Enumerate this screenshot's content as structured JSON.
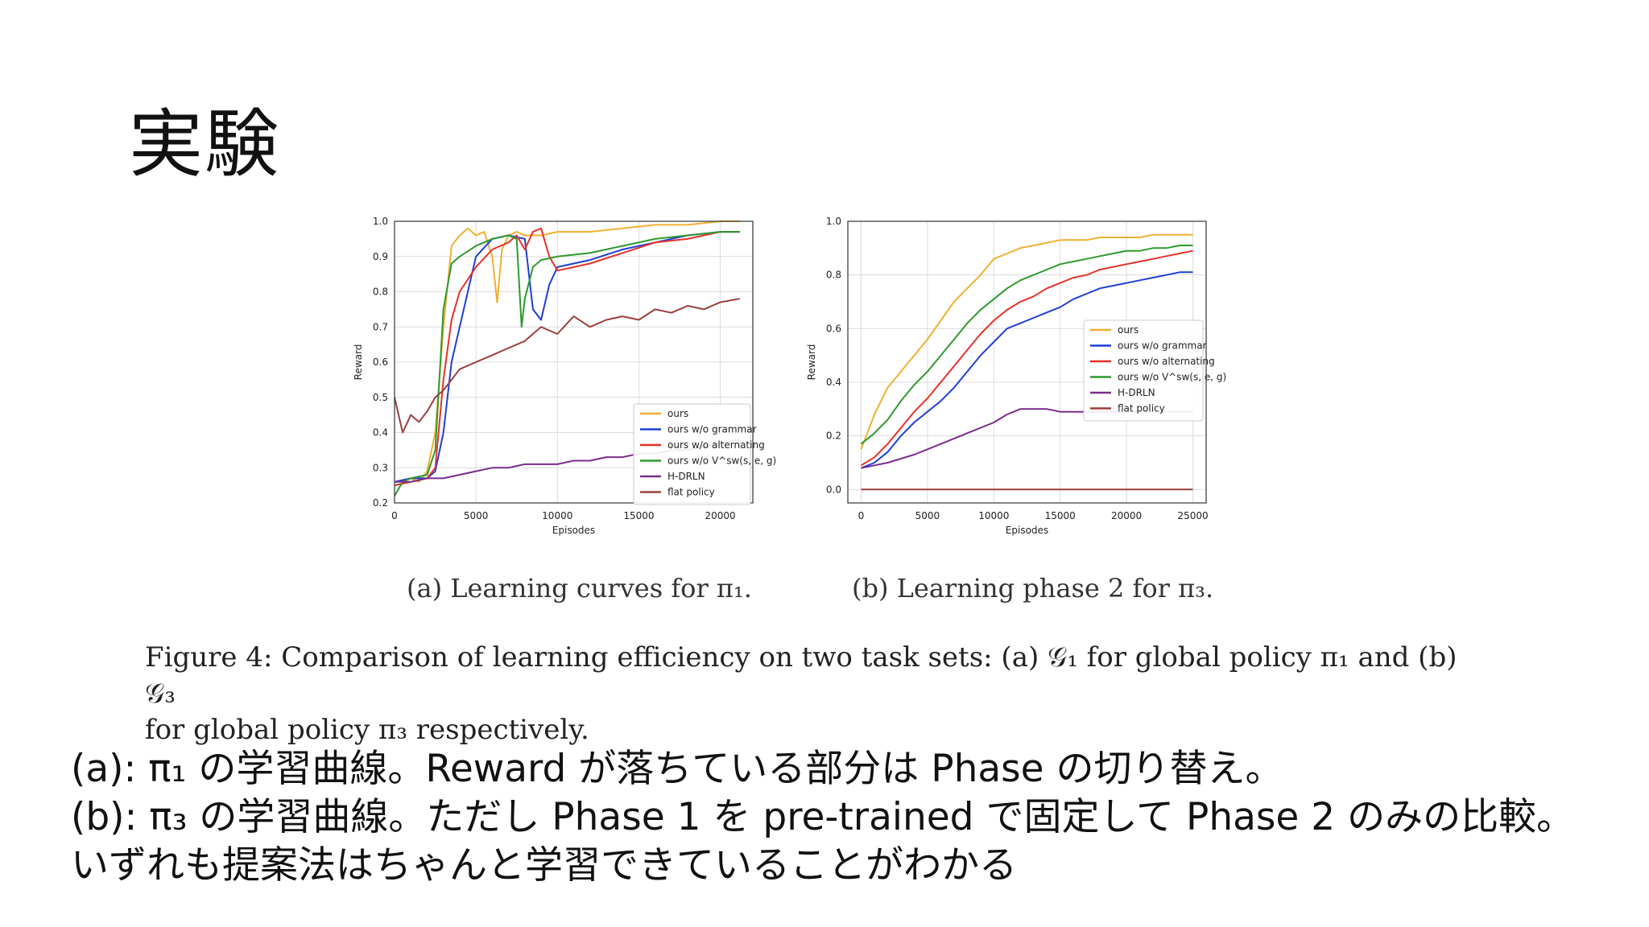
{
  "slide": {
    "title": "実験"
  },
  "subcaptions": {
    "a": "(a) Learning curves for π₁.",
    "b": "(b) Learning phase 2 for π₃."
  },
  "figure_caption": {
    "line1": "Figure 4: Comparison of learning efficiency on two task sets: (a) 𝒢₁ for global policy π₁ and (b) 𝒢₃",
    "line2": "for global policy π₃ respectively."
  },
  "notes": {
    "line1": "(a):  π₁ の学習曲線。Reward が落ちている部分は Phase の切り替え。",
    "line2": "(b):  π₃ の学習曲線。ただし Phase 1 を pre-trained で固定して Phase 2 のみの比較。",
    "line3": "いずれも提案法はちゃんと学習できていることがわかる"
  },
  "colors": {
    "ours": "#f0b030",
    "ours_wo_grammar": "#1f3fd8",
    "ours_wo_alternating": "#e8302a",
    "ours_wo_vsw": "#2e9a2e",
    "h_drln": "#7b2d8b",
    "flat_policy": "#9c3f3f"
  },
  "chart_data": [
    {
      "type": "line",
      "xlabel": "Episodes",
      "ylabel": "Reward",
      "xlim": [
        0,
        22000
      ],
      "ylim": [
        0.2,
        1.0
      ],
      "xticks": [
        0,
        5000,
        10000,
        15000,
        20000
      ],
      "yticks": [
        0.2,
        0.3,
        0.4,
        0.5,
        0.6,
        0.7,
        0.8,
        0.9,
        1.0
      ],
      "grid": true,
      "legend_position": "lower-right",
      "series": [
        {
          "name": "ours",
          "color": "#f0b030",
          "x": [
            0,
            1000,
            1500,
            2000,
            2500,
            3000,
            3500,
            4000,
            4500,
            5000,
            5500,
            6000,
            6300,
            6600,
            7000,
            7500,
            8000,
            9000,
            10000,
            12000,
            14000,
            16000,
            18000,
            20000,
            21200
          ],
          "y": [
            0.26,
            0.27,
            0.26,
            0.29,
            0.4,
            0.7,
            0.93,
            0.96,
            0.98,
            0.96,
            0.97,
            0.9,
            0.77,
            0.92,
            0.96,
            0.97,
            0.96,
            0.96,
            0.97,
            0.97,
            0.98,
            0.99,
            0.99,
            1.0,
            1.0
          ]
        },
        {
          "name": "ours w/o grammar",
          "color": "#1f3fd8",
          "x": [
            0,
            1000,
            2000,
            2500,
            3000,
            3500,
            4000,
            5000,
            6000,
            7000,
            8000,
            8500,
            9000,
            9500,
            10000,
            12000,
            14000,
            16000,
            18000,
            20000,
            21200
          ],
          "y": [
            0.26,
            0.27,
            0.27,
            0.29,
            0.4,
            0.6,
            0.7,
            0.9,
            0.95,
            0.96,
            0.95,
            0.75,
            0.72,
            0.82,
            0.87,
            0.89,
            0.92,
            0.94,
            0.96,
            0.97,
            0.97
          ]
        },
        {
          "name": "ours w/o alternating",
          "color": "#e8302a",
          "x": [
            0,
            1000,
            2000,
            2500,
            3000,
            3500,
            4000,
            5000,
            6000,
            7000,
            7500,
            8000,
            8500,
            9000,
            9500,
            10000,
            12000,
            14000,
            16000,
            18000,
            20000,
            21200
          ],
          "y": [
            0.25,
            0.26,
            0.27,
            0.3,
            0.55,
            0.72,
            0.8,
            0.87,
            0.92,
            0.94,
            0.96,
            0.92,
            0.97,
            0.98,
            0.9,
            0.86,
            0.88,
            0.91,
            0.94,
            0.95,
            0.97,
            0.97
          ]
        },
        {
          "name": "ours w/o V^sw(s, e, g)",
          "color": "#2e9a2e",
          "x": [
            0,
            500,
            1000,
            2000,
            2500,
            3000,
            3500,
            4000,
            5000,
            6000,
            7000,
            7500,
            7800,
            8000,
            8500,
            9000,
            10000,
            12000,
            14000,
            16000,
            18000,
            20000,
            21200
          ],
          "y": [
            0.22,
            0.26,
            0.27,
            0.28,
            0.35,
            0.75,
            0.88,
            0.9,
            0.93,
            0.95,
            0.96,
            0.95,
            0.7,
            0.78,
            0.87,
            0.89,
            0.9,
            0.91,
            0.93,
            0.95,
            0.96,
            0.97,
            0.97
          ]
        },
        {
          "name": "H-DRLN",
          "color": "#7b2d8b",
          "x": [
            0,
            1000,
            2000,
            3000,
            4000,
            5000,
            6000,
            7000,
            8000,
            9000,
            10000,
            11000,
            12000,
            13000,
            14000,
            15000,
            16000,
            17000,
            18000,
            19000,
            20000,
            21200
          ],
          "y": [
            0.26,
            0.26,
            0.27,
            0.27,
            0.28,
            0.29,
            0.3,
            0.3,
            0.31,
            0.31,
            0.31,
            0.32,
            0.32,
            0.33,
            0.33,
            0.34,
            0.34,
            0.35,
            0.35,
            0.36,
            0.37,
            0.38
          ]
        },
        {
          "name": "flat policy",
          "color": "#9c3f3f",
          "x": [
            0,
            500,
            1000,
            1500,
            2000,
            2500,
            3000,
            4000,
            5000,
            6000,
            7000,
            8000,
            9000,
            10000,
            11000,
            12000,
            13000,
            14000,
            15000,
            16000,
            17000,
            18000,
            19000,
            20000,
            21200
          ],
          "y": [
            0.5,
            0.4,
            0.45,
            0.43,
            0.46,
            0.5,
            0.52,
            0.58,
            0.6,
            0.62,
            0.64,
            0.66,
            0.7,
            0.68,
            0.73,
            0.7,
            0.72,
            0.73,
            0.72,
            0.75,
            0.74,
            0.76,
            0.75,
            0.77,
            0.78
          ]
        }
      ]
    },
    {
      "type": "line",
      "xlabel": "Episodes",
      "ylabel": "Reward",
      "xlim": [
        -1000,
        26000
      ],
      "ylim": [
        -0.05,
        1.0
      ],
      "xticks": [
        0,
        5000,
        10000,
        15000,
        20000,
        25000
      ],
      "yticks": [
        0.0,
        0.2,
        0.4,
        0.6,
        0.8,
        1.0
      ],
      "grid": true,
      "legend_position": "right",
      "series": [
        {
          "name": "ours",
          "color": "#f0b030",
          "x": [
            0,
            1000,
            2000,
            3000,
            4000,
            5000,
            6000,
            7000,
            8000,
            9000,
            10000,
            11000,
            12000,
            13000,
            14000,
            15000,
            16000,
            17000,
            18000,
            19000,
            20000,
            21000,
            22000,
            23000,
            24000,
            25000
          ],
          "y": [
            0.15,
            0.28,
            0.38,
            0.44,
            0.5,
            0.56,
            0.63,
            0.7,
            0.75,
            0.8,
            0.86,
            0.88,
            0.9,
            0.91,
            0.92,
            0.93,
            0.93,
            0.93,
            0.94,
            0.94,
            0.94,
            0.94,
            0.95,
            0.95,
            0.95,
            0.95
          ]
        },
        {
          "name": "ours w/o grammar",
          "color": "#1f3fd8",
          "x": [
            0,
            1000,
            2000,
            3000,
            4000,
            5000,
            6000,
            7000,
            8000,
            9000,
            10000,
            11000,
            12000,
            13000,
            14000,
            15000,
            16000,
            17000,
            18000,
            19000,
            20000,
            21000,
            22000,
            23000,
            24000,
            25000
          ],
          "y": [
            0.08,
            0.1,
            0.14,
            0.2,
            0.25,
            0.29,
            0.33,
            0.38,
            0.44,
            0.5,
            0.55,
            0.6,
            0.62,
            0.64,
            0.66,
            0.68,
            0.71,
            0.73,
            0.75,
            0.76,
            0.77,
            0.78,
            0.79,
            0.8,
            0.81,
            0.81
          ]
        },
        {
          "name": "ours w/o alternating",
          "color": "#e8302a",
          "x": [
            0,
            1000,
            2000,
            3000,
            4000,
            5000,
            6000,
            7000,
            8000,
            9000,
            10000,
            11000,
            12000,
            13000,
            14000,
            15000,
            16000,
            17000,
            18000,
            19000,
            20000,
            21000,
            22000,
            23000,
            24000,
            25000
          ],
          "y": [
            0.09,
            0.12,
            0.17,
            0.23,
            0.29,
            0.34,
            0.4,
            0.46,
            0.52,
            0.58,
            0.63,
            0.67,
            0.7,
            0.72,
            0.75,
            0.77,
            0.79,
            0.8,
            0.82,
            0.83,
            0.84,
            0.85,
            0.86,
            0.87,
            0.88,
            0.89
          ]
        },
        {
          "name": "ours w/o V^sw(s, e, g)",
          "color": "#2e9a2e",
          "x": [
            0,
            1000,
            2000,
            3000,
            4000,
            5000,
            6000,
            7000,
            8000,
            9000,
            10000,
            11000,
            12000,
            13000,
            14000,
            15000,
            16000,
            17000,
            18000,
            19000,
            20000,
            21000,
            22000,
            23000,
            24000,
            25000
          ],
          "y": [
            0.17,
            0.21,
            0.26,
            0.33,
            0.39,
            0.44,
            0.5,
            0.56,
            0.62,
            0.67,
            0.71,
            0.75,
            0.78,
            0.8,
            0.82,
            0.84,
            0.85,
            0.86,
            0.87,
            0.88,
            0.89,
            0.89,
            0.9,
            0.9,
            0.91,
            0.91
          ]
        },
        {
          "name": "H-DRLN",
          "color": "#7b2d8b",
          "x": [
            0,
            2000,
            4000,
            6000,
            8000,
            10000,
            11000,
            12000,
            13000,
            14000,
            15000,
            16000,
            17000,
            18000,
            19000,
            20000,
            21000,
            22000,
            23000,
            24000,
            25000
          ],
          "y": [
            0.08,
            0.1,
            0.13,
            0.17,
            0.21,
            0.25,
            0.28,
            0.3,
            0.3,
            0.3,
            0.29,
            0.29,
            0.29,
            0.29,
            0.29,
            0.29,
            0.29,
            0.29,
            0.29,
            0.29,
            0.29
          ]
        },
        {
          "name": "flat policy",
          "color": "#9c3f3f",
          "x": [
            0,
            25000
          ],
          "y": [
            0.0,
            0.0
          ]
        }
      ]
    }
  ]
}
